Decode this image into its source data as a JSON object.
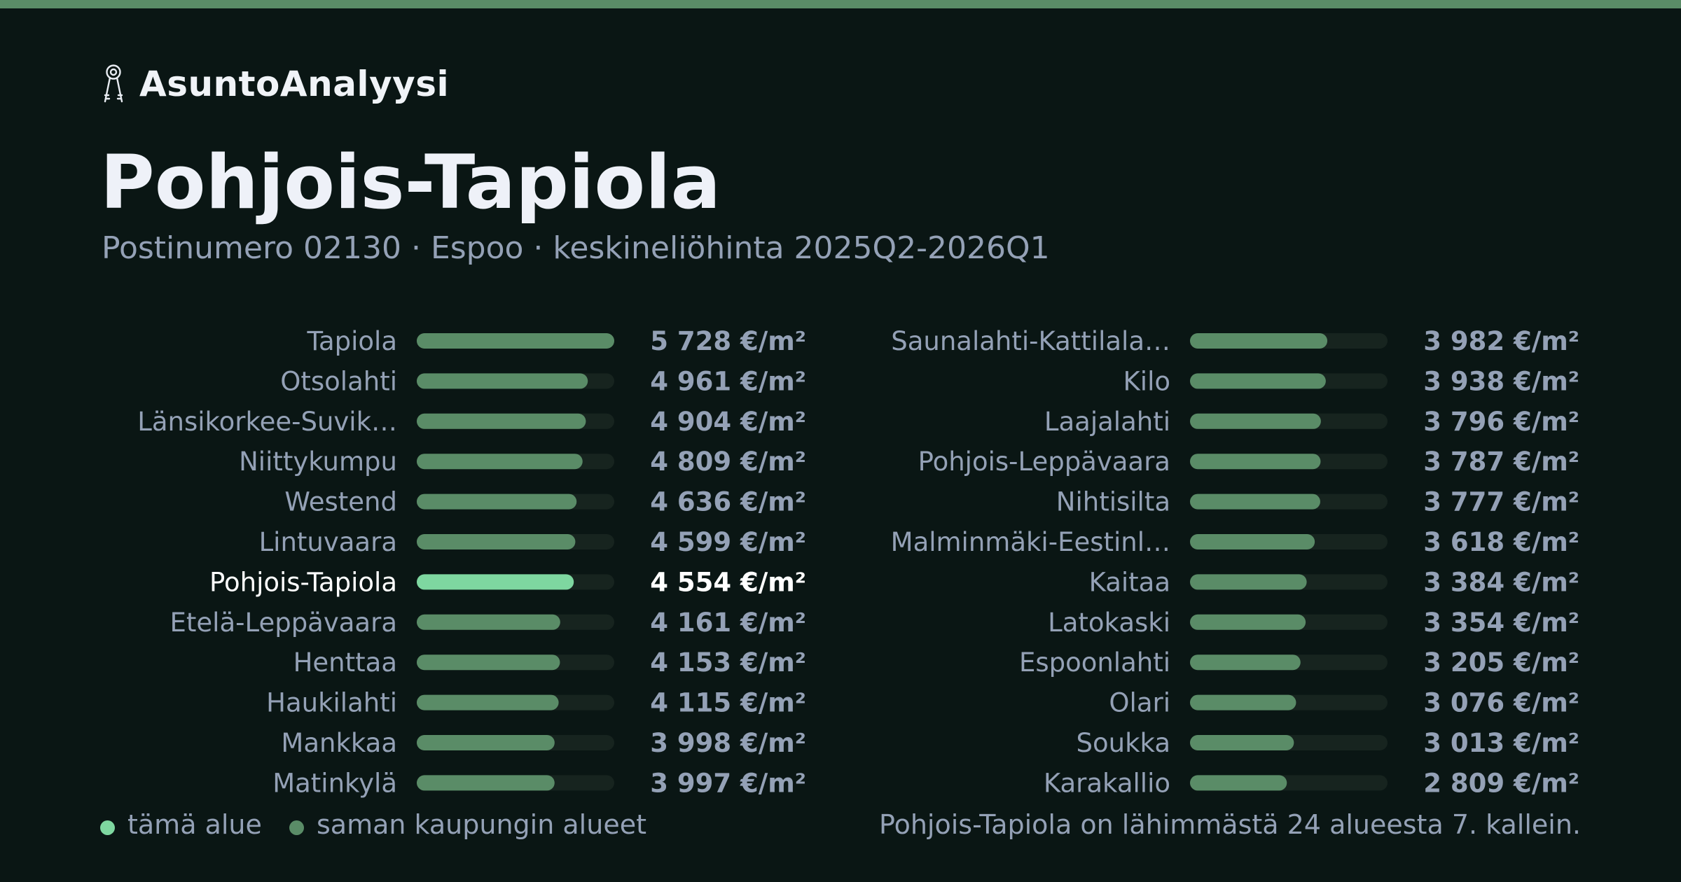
{
  "brand": {
    "name": "AsuntoAnalyysi",
    "icon": "keys-icon"
  },
  "title": "Pohjois-Tapiola",
  "subtitle": "Postinumero 02130 · Espoo · keskineliöhinta 2025Q2-2026Q1",
  "colors": {
    "background": "#0a1614",
    "accent": "#5a8c67",
    "highlight": "#7ed7a0",
    "track": "#17241f",
    "text_muted": "#94a1b6",
    "text_bright": "#ffffff"
  },
  "legend": {
    "this_area": "tämä alue",
    "other_areas": "saman kaupungin alueet"
  },
  "footer_note": "Pohjois-Tapiola on lähimmästä 24 alueesta 7. kallein.",
  "chart_data": {
    "type": "bar",
    "unit": "€/m²",
    "xlim": [
      0,
      5728
    ],
    "highlight": "Pohjois-Tapiola",
    "columns": [
      {
        "categories": [
          "Tapiola",
          "Otsolahti",
          "Länsikorkee-Suvik…",
          "Niittykumpu",
          "Westend",
          "Lintuvaara",
          "Pohjois-Tapiola",
          "Etelä-Leppävaara",
          "Henttaa",
          "Haukilahti",
          "Mankkaa",
          "Matinkylä"
        ],
        "values": [
          5728,
          4961,
          4904,
          4809,
          4636,
          4599,
          4554,
          4161,
          4153,
          4115,
          3998,
          3997
        ],
        "labels": [
          "5 728 €/m²",
          "4 961 €/m²",
          "4 904 €/m²",
          "4 809 €/m²",
          "4 636 €/m²",
          "4 599 €/m²",
          "4 554 €/m²",
          "4 161 €/m²",
          "4 153 €/m²",
          "4 115 €/m²",
          "3 998 €/m²",
          "3 997 €/m²"
        ]
      },
      {
        "categories": [
          "Saunalahti-Kattilala…",
          "Kilo",
          "Laajalahti",
          "Pohjois-Leppävaara",
          "Nihtisilta",
          "Malminmäki-Eestinl…",
          "Kaitaa",
          "Latokaski",
          "Espoonlahti",
          "Olari",
          "Soukka",
          "Karakallio"
        ],
        "values": [
          3982,
          3938,
          3796,
          3787,
          3777,
          3618,
          3384,
          3354,
          3205,
          3076,
          3013,
          2809
        ],
        "labels": [
          "3 982 €/m²",
          "3 938 €/m²",
          "3 796 €/m²",
          "3 787 €/m²",
          "3 777 €/m²",
          "3 618 €/m²",
          "3 384 €/m²",
          "3 354 €/m²",
          "3 205 €/m²",
          "3 076 €/m²",
          "3 013 €/m²",
          "2 809 €/m²"
        ]
      }
    ]
  }
}
